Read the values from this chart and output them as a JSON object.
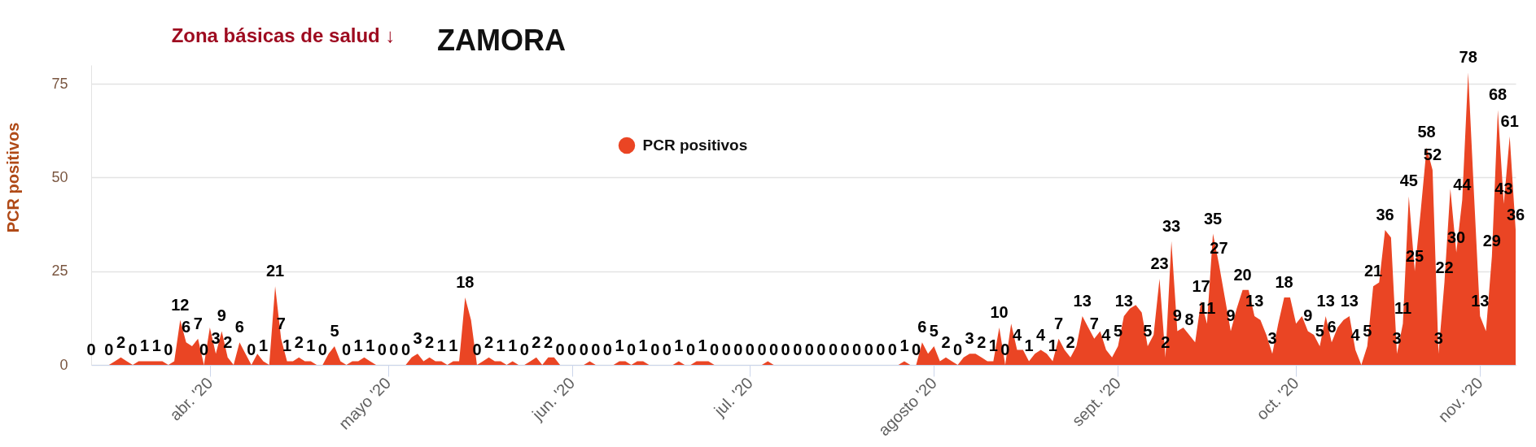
{
  "chart_data": {
    "type": "area",
    "title": "ZAMORA",
    "annotations": [
      "Zona básicas de salud ↓"
    ],
    "ylabel": "PCR positivos",
    "x": [
      "2020-03-12",
      "2020-03-13",
      "2020-03-14",
      "2020-03-15",
      "2020-03-16",
      "2020-03-17",
      "2020-03-18",
      "2020-03-19",
      "2020-03-20",
      "2020-03-21",
      "2020-03-22",
      "2020-03-23",
      "2020-03-24",
      "2020-03-25",
      "2020-03-26",
      "2020-03-27",
      "2020-03-28",
      "2020-03-29",
      "2020-03-30",
      "2020-03-31",
      "2020-04-01",
      "2020-04-02",
      "2020-04-03",
      "2020-04-04",
      "2020-04-05",
      "2020-04-06",
      "2020-04-07",
      "2020-04-08",
      "2020-04-09",
      "2020-04-10",
      "2020-04-11",
      "2020-04-12",
      "2020-04-13",
      "2020-04-14",
      "2020-04-15",
      "2020-04-16",
      "2020-04-17",
      "2020-04-18",
      "2020-04-19",
      "2020-04-20",
      "2020-04-21",
      "2020-04-22",
      "2020-04-23",
      "2020-04-24",
      "2020-04-25",
      "2020-04-26",
      "2020-04-27",
      "2020-04-28",
      "2020-04-29",
      "2020-04-30",
      "2020-05-01",
      "2020-05-02",
      "2020-05-03",
      "2020-05-04",
      "2020-05-05",
      "2020-05-06",
      "2020-05-07",
      "2020-05-08",
      "2020-05-09",
      "2020-05-10",
      "2020-05-11",
      "2020-05-12",
      "2020-05-13",
      "2020-05-14",
      "2020-05-15",
      "2020-05-16",
      "2020-05-17",
      "2020-05-18",
      "2020-05-19",
      "2020-05-20",
      "2020-05-21",
      "2020-05-22",
      "2020-05-23",
      "2020-05-24",
      "2020-05-25",
      "2020-05-26",
      "2020-05-27",
      "2020-05-28",
      "2020-05-29",
      "2020-05-30",
      "2020-05-31",
      "2020-06-01",
      "2020-06-02",
      "2020-06-03",
      "2020-06-04",
      "2020-06-05",
      "2020-06-06",
      "2020-06-07",
      "2020-06-08",
      "2020-06-09",
      "2020-06-10",
      "2020-06-11",
      "2020-06-12",
      "2020-06-13",
      "2020-06-14",
      "2020-06-15",
      "2020-06-16",
      "2020-06-17",
      "2020-06-18",
      "2020-06-19",
      "2020-06-20",
      "2020-06-21",
      "2020-06-22",
      "2020-06-23",
      "2020-06-24",
      "2020-06-25",
      "2020-06-26",
      "2020-06-27",
      "2020-06-28",
      "2020-06-29",
      "2020-06-30",
      "2020-07-01",
      "2020-07-02",
      "2020-07-03",
      "2020-07-04",
      "2020-07-05",
      "2020-07-06",
      "2020-07-07",
      "2020-07-08",
      "2020-07-09",
      "2020-07-10",
      "2020-07-11",
      "2020-07-12",
      "2020-07-13",
      "2020-07-14",
      "2020-07-15",
      "2020-07-16",
      "2020-07-17",
      "2020-07-18",
      "2020-07-19",
      "2020-07-20",
      "2020-07-21",
      "2020-07-22",
      "2020-07-23",
      "2020-07-24",
      "2020-07-25",
      "2020-07-26",
      "2020-07-27",
      "2020-07-28",
      "2020-07-29",
      "2020-07-30",
      "2020-07-31",
      "2020-08-01",
      "2020-08-02",
      "2020-08-03",
      "2020-08-04",
      "2020-08-05",
      "2020-08-06",
      "2020-08-07",
      "2020-08-08",
      "2020-08-09",
      "2020-08-10",
      "2020-08-11",
      "2020-08-12",
      "2020-08-13",
      "2020-08-14",
      "2020-08-15",
      "2020-08-16",
      "2020-08-17",
      "2020-08-18",
      "2020-08-19",
      "2020-08-20",
      "2020-08-21",
      "2020-08-22",
      "2020-08-23",
      "2020-08-24",
      "2020-08-25",
      "2020-08-26",
      "2020-08-27",
      "2020-08-28",
      "2020-08-29",
      "2020-08-30",
      "2020-08-31",
      "2020-09-01",
      "2020-09-02",
      "2020-09-03",
      "2020-09-04",
      "2020-09-05",
      "2020-09-06",
      "2020-09-07",
      "2020-09-08",
      "2020-09-09",
      "2020-09-10",
      "2020-09-11",
      "2020-09-12",
      "2020-09-13",
      "2020-09-14",
      "2020-09-15",
      "2020-09-16",
      "2020-09-17",
      "2020-09-18",
      "2020-09-19",
      "2020-09-20",
      "2020-09-21",
      "2020-09-22",
      "2020-09-23",
      "2020-09-24",
      "2020-09-25",
      "2020-09-26",
      "2020-09-27",
      "2020-09-28",
      "2020-09-29",
      "2020-09-30",
      "2020-10-01",
      "2020-10-02",
      "2020-10-03",
      "2020-10-04",
      "2020-10-05",
      "2020-10-06",
      "2020-10-07",
      "2020-10-08",
      "2020-10-09",
      "2020-10-10",
      "2020-10-11",
      "2020-10-12",
      "2020-10-13",
      "2020-10-14",
      "2020-10-15",
      "2020-10-16",
      "2020-10-17",
      "2020-10-18",
      "2020-10-19",
      "2020-10-20",
      "2020-10-21",
      "2020-10-22",
      "2020-10-23",
      "2020-10-24",
      "2020-10-25",
      "2020-10-26",
      "2020-10-27",
      "2020-10-28",
      "2020-10-29",
      "2020-10-30",
      "2020-10-31",
      "2020-11-01",
      "2020-11-02",
      "2020-11-03",
      "2020-11-04",
      "2020-11-05",
      "2020-11-06",
      "2020-11-07"
    ],
    "series": [
      {
        "name": "PCR positivos",
        "color": "#ea4524",
        "values": [
          0,
          0,
          0,
          0,
          1,
          2,
          1,
          0,
          1,
          1,
          1,
          1,
          1,
          0,
          1,
          12,
          6,
          5,
          7,
          0,
          10,
          3,
          9,
          2,
          0,
          6,
          3,
          0,
          3,
          1,
          0,
          21,
          7,
          1,
          1,
          2,
          1,
          1,
          0,
          0,
          3,
          5,
          1,
          0,
          1,
          1,
          2,
          1,
          0,
          0,
          0,
          0,
          0,
          0,
          2,
          3,
          1,
          2,
          1,
          1,
          0,
          1,
          1,
          18,
          12,
          0,
          1,
          2,
          1,
          1,
          0,
          1,
          0,
          0,
          1,
          2,
          0,
          2,
          2,
          0,
          0,
          0,
          0,
          0,
          1,
          0,
          0,
          0,
          0,
          1,
          1,
          0,
          1,
          1,
          0,
          0,
          0,
          0,
          0,
          1,
          0,
          0,
          1,
          1,
          1,
          0,
          0,
          0,
          0,
          0,
          0,
          0,
          0,
          0,
          1,
          0,
          0,
          0,
          0,
          0,
          0,
          0,
          0,
          0,
          0,
          0,
          0,
          0,
          0,
          0,
          0,
          0,
          0,
          0,
          0,
          0,
          0,
          1,
          0,
          0,
          6,
          3,
          5,
          1,
          2,
          1,
          0,
          2,
          3,
          3,
          2,
          1,
          1,
          10,
          0,
          11,
          4,
          4,
          1,
          3,
          4,
          3,
          1,
          7,
          4,
          2,
          5,
          13,
          10,
          7,
          9,
          4,
          2,
          5,
          13,
          15,
          16,
          14,
          5,
          8,
          23,
          2,
          33,
          9,
          10,
          8,
          6,
          17,
          11,
          35,
          27,
          18,
          9,
          15,
          20,
          20,
          13,
          12,
          8,
          3,
          11,
          18,
          18,
          11,
          13,
          9,
          8,
          5,
          13,
          6,
          10,
          12,
          13,
          4,
          0,
          5,
          21,
          22,
          36,
          34,
          3,
          11,
          45,
          25,
          41,
          58,
          52,
          3,
          22,
          47,
          30,
          44,
          78,
          45,
          13,
          9,
          29,
          68,
          43,
          61,
          36
        ],
        "value_labels": [
          "0",
          null,
          null,
          "0",
          null,
          "2",
          null,
          "0",
          null,
          "1",
          null,
          "1",
          null,
          "0",
          null,
          "12",
          "6",
          null,
          "7",
          "0",
          null,
          "3",
          "9",
          "2",
          null,
          "6",
          null,
          "0",
          null,
          "1",
          null,
          "21",
          "7",
          "1",
          null,
          "2",
          null,
          "1",
          null,
          "0",
          null,
          "5",
          null,
          "0",
          null,
          "1",
          null,
          "1",
          null,
          "0",
          null,
          "0",
          null,
          "0",
          null,
          "3",
          null,
          "2",
          null,
          "1",
          null,
          "1",
          null,
          "18",
          null,
          "0",
          null,
          "2",
          null,
          "1",
          null,
          "1",
          null,
          "0",
          null,
          "2",
          null,
          "2",
          null,
          "0",
          null,
          "0",
          null,
          "0",
          null,
          "0",
          null,
          "0",
          null,
          "1",
          null,
          "0",
          null,
          "1",
          null,
          "0",
          null,
          "0",
          null,
          "1",
          null,
          "0",
          null,
          "1",
          null,
          "0",
          null,
          "0",
          null,
          "0",
          null,
          "0",
          null,
          "0",
          null,
          "0",
          null,
          "0",
          null,
          "0",
          null,
          "0",
          null,
          "0",
          null,
          "0",
          null,
          "0",
          null,
          "0",
          null,
          "0",
          null,
          "0",
          null,
          "0",
          null,
          "1",
          null,
          "0",
          "6",
          null,
          "5",
          null,
          "2",
          null,
          "0",
          null,
          "3",
          null,
          "2",
          null,
          "1",
          "10",
          "0",
          null,
          "4",
          null,
          "1",
          null,
          "4",
          null,
          "1",
          "7",
          null,
          "2",
          null,
          "13",
          null,
          "7",
          null,
          "4",
          null,
          "5",
          "13",
          null,
          null,
          null,
          "5",
          null,
          "23",
          "2",
          "33",
          "9",
          null,
          "8",
          null,
          "17",
          "11",
          "35",
          "27",
          null,
          "9",
          null,
          "20",
          null,
          "13",
          null,
          null,
          "3",
          null,
          "18",
          null,
          null,
          null,
          "9",
          null,
          "5",
          "13",
          "6",
          null,
          null,
          "13",
          "4",
          null,
          "5",
          "21",
          null,
          "36",
          null,
          "3",
          "11",
          "45",
          "25",
          null,
          "58",
          "52",
          "3",
          "22",
          null,
          "30",
          "44",
          "78",
          null,
          "13",
          null,
          "29",
          "68",
          "43",
          "61",
          "36"
        ]
      }
    ],
    "xlim": [
      "2020-03-12",
      "2020-11-07"
    ],
    "xticks": [
      {
        "value": "2020-04-01",
        "label": "abr. '20"
      },
      {
        "value": "2020-05-01",
        "label": "mayo '20"
      },
      {
        "value": "2020-06-01",
        "label": "jun. '20"
      },
      {
        "value": "2020-07-01",
        "label": "jul. '20"
      },
      {
        "value": "2020-08-01",
        "label": "agosto '20"
      },
      {
        "value": "2020-09-01",
        "label": "sept. '20"
      },
      {
        "value": "2020-10-01",
        "label": "oct. '20"
      },
      {
        "value": "2020-11-01",
        "label": "nov. '20"
      }
    ],
    "ylim": [
      0,
      80
    ],
    "yticks": [
      0,
      25,
      50,
      75
    ],
    "grid": "y",
    "legend": "top"
  }
}
